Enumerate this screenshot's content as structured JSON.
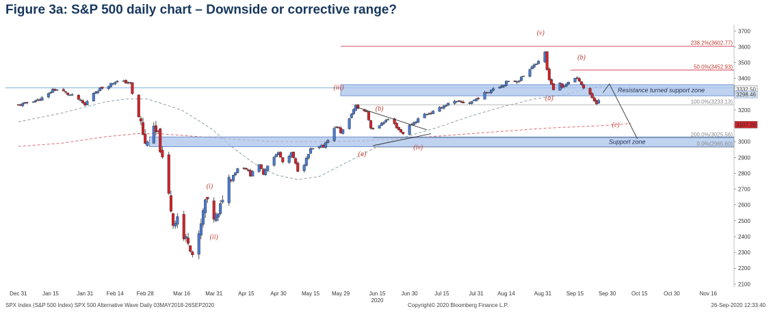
{
  "title": "Figure 3a: S&P 500 daily chart – Downside or corrective range?",
  "footer": {
    "left": "SPX Index (S&P 500 Index) SPX 500 Alternative Wave  Daily 03MAY2018-26SEP2020",
    "center": "Copyright© 2020 Bloomberg Finance L.P.",
    "right": "26-Sep-2020 12:33:40"
  },
  "colors": {
    "up": "#4a7bd0",
    "down": "#d2232a",
    "zone": "#a9c4ec",
    "zone_border": "#5b7fbf",
    "fib_line": "#d64a61",
    "ma_fast": "#8a9ea4",
    "ma_slow": "#e0686d",
    "title": "#17375e"
  },
  "chart_data": {
    "type": "candlestick",
    "title": "Figure 3a: S&P 500 daily chart – Downside or corrective range?",
    "y_axis": {
      "side": "right",
      "ticks": [
        2100,
        2200,
        2300,
        2400,
        2500,
        2600,
        2700,
        2800,
        2900,
        3000,
        3100,
        3200,
        3300,
        3400,
        3500,
        3600,
        3700
      ],
      "range": [
        2080,
        3740
      ]
    },
    "x_axis": {
      "ticks": [
        {
          "label": "Dec 31",
          "d": 0
        },
        {
          "label": "Jan 15",
          "d": 15
        },
        {
          "label": "Jan 31",
          "d": 31
        },
        {
          "label": "Feb 14",
          "d": 45
        },
        {
          "label": "Feb 28",
          "d": 59
        },
        {
          "label": "Mar 16",
          "d": 76
        },
        {
          "label": "Mar 31",
          "d": 91
        },
        {
          "label": "Apr 15",
          "d": 106
        },
        {
          "label": "Apr 30",
          "d": 121
        },
        {
          "label": "May 15",
          "d": 136
        },
        {
          "label": "May 29",
          "d": 150
        },
        {
          "label": "Jun 15",
          "d": 167
        },
        {
          "label": "Jun 30",
          "d": 182
        },
        {
          "label": "Jul 15",
          "d": 197
        },
        {
          "label": "Jul 31",
          "d": 213
        },
        {
          "label": "Aug 14",
          "d": 227
        },
        {
          "label": "Aug 31",
          "d": 244
        },
        {
          "label": "Sep 15",
          "d": 259
        },
        {
          "label": "Sep 30",
          "d": 274
        },
        {
          "label": "Oct 15",
          "d": 289
        },
        {
          "label": "Oct 30",
          "d": 304
        },
        {
          "label": "Nov 16",
          "d": 321
        }
      ],
      "year_label": "2020",
      "domain_days": [
        -6,
        333
      ]
    },
    "close_path": [
      [
        0,
        3230
      ],
      [
        3,
        3240
      ],
      [
        6,
        3258
      ],
      [
        9,
        3262
      ],
      [
        13,
        3285
      ],
      [
        16,
        3330
      ],
      [
        20,
        3325
      ],
      [
        23,
        3300
      ],
      [
        27,
        3280
      ],
      [
        31,
        3230
      ],
      [
        34,
        3300
      ],
      [
        38,
        3335
      ],
      [
        41,
        3350
      ],
      [
        45,
        3380
      ],
      [
        48,
        3380
      ],
      [
        52,
        3370
      ],
      [
        54,
        3230
      ],
      [
        57,
        3120
      ],
      [
        59,
        2980
      ],
      [
        62,
        3090
      ],
      [
        65,
        3040
      ],
      [
        67,
        2880
      ],
      [
        69,
        2750
      ],
      [
        72,
        2480
      ],
      [
        74,
        2530
      ],
      [
        76,
        2390
      ],
      [
        79,
        2380
      ],
      [
        82,
        2240
      ],
      [
        85,
        2475
      ],
      [
        87,
        2630
      ],
      [
        89,
        2590
      ],
      [
        91,
        2520
      ],
      [
        93,
        2530
      ],
      [
        95,
        2650
      ],
      [
        97,
        2760
      ],
      [
        100,
        2790
      ],
      [
        103,
        2850
      ],
      [
        106,
        2830
      ],
      [
        108,
        2790
      ],
      [
        111,
        2870
      ],
      [
        114,
        2800
      ],
      [
        117,
        2880
      ],
      [
        121,
        2930
      ],
      [
        124,
        2840
      ],
      [
        127,
        2930
      ],
      [
        130,
        2820
      ],
      [
        133,
        2860
      ],
      [
        136,
        2950
      ],
      [
        139,
        2960
      ],
      [
        142,
        2970
      ],
      [
        145,
        3040
      ],
      [
        148,
        3100
      ],
      [
        150,
        3060
      ],
      [
        153,
        3100
      ],
      [
        155,
        3180
      ],
      [
        157,
        3225
      ],
      [
        159,
        3200
      ],
      [
        162,
        3190
      ],
      [
        164,
        3090
      ],
      [
        167,
        3070
      ],
      [
        169,
        3120
      ],
      [
        172,
        3140
      ],
      [
        175,
        3110
      ],
      [
        178,
        3060
      ],
      [
        180,
        3050
      ],
      [
        182,
        3100
      ],
      [
        185,
        3130
      ],
      [
        188,
        3170
      ],
      [
        191,
        3180
      ],
      [
        194,
        3190
      ],
      [
        197,
        3220
      ],
      [
        200,
        3240
      ],
      [
        203,
        3250
      ],
      [
        206,
        3250
      ],
      [
        209,
        3240
      ],
      [
        213,
        3270
      ],
      [
        216,
        3295
      ],
      [
        219,
        3320
      ],
      [
        222,
        3350
      ],
      [
        225,
        3355
      ],
      [
        227,
        3375
      ],
      [
        230,
        3380
      ],
      [
        233,
        3390
      ],
      [
        236,
        3430
      ],
      [
        239,
        3480
      ],
      [
        242,
        3500
      ],
      [
        244,
        3580
      ],
      [
        245,
        3560
      ],
      [
        246,
        3455
      ],
      [
        247,
        3400
      ],
      [
        249,
        3330
      ],
      [
        251,
        3390
      ],
      [
        253,
        3340
      ],
      [
        256,
        3380
      ],
      [
        259,
        3400
      ],
      [
        261,
        3390
      ],
      [
        263,
        3340
      ],
      [
        265,
        3320
      ],
      [
        267,
        3280
      ],
      [
        269,
        3240
      ],
      [
        271,
        3290
      ]
    ],
    "moving_averages": [
      {
        "name": "fast",
        "points": [
          [
            0,
            3125
          ],
          [
            20,
            3180
          ],
          [
            40,
            3250
          ],
          [
            50,
            3270
          ],
          [
            60,
            3270
          ],
          [
            76,
            3200
          ],
          [
            90,
            3080
          ],
          [
            100,
            2960
          ],
          [
            110,
            2860
          ],
          [
            120,
            2790
          ],
          [
            130,
            2760
          ],
          [
            140,
            2780
          ],
          [
            150,
            2850
          ],
          [
            160,
            2920
          ],
          [
            170,
            2990
          ],
          [
            180,
            3030
          ],
          [
            195,
            3090
          ],
          [
            210,
            3160
          ],
          [
            225,
            3220
          ],
          [
            240,
            3270
          ],
          [
            255,
            3300
          ],
          [
            266,
            3340
          ],
          [
            272,
            3350
          ]
        ]
      },
      {
        "name": "slow",
        "points": [
          [
            0,
            2970
          ],
          [
            20,
            2990
          ],
          [
            40,
            3030
          ],
          [
            55,
            3050
          ],
          [
            65,
            3050
          ],
          [
            76,
            3040
          ],
          [
            95,
            3020
          ],
          [
            120,
            3000
          ],
          [
            140,
            3000
          ],
          [
            160,
            3005
          ],
          [
            180,
            3020
          ],
          [
            200,
            3040
          ],
          [
            220,
            3060
          ],
          [
            245,
            3085
          ],
          [
            270,
            3100
          ],
          [
            285,
            3115
          ]
        ]
      }
    ],
    "levels": [
      {
        "label": "238.2%(3602.77)",
        "value": 3602.77,
        "d_start": 150,
        "color": "#d64a61"
      },
      {
        "label": "50.0%(3452.93)",
        "value": 3452.93,
        "d_start": 257,
        "color": "#d64a61"
      },
      {
        "label": "100.0%(3233.13)",
        "value": 3233.13,
        "d_start": 155,
        "color": "#b8b8b8"
      },
      {
        "label": "200.0%(3025.56)",
        "value": 3025.56,
        "d_start": 165,
        "color": "#7a8ea6"
      },
      {
        "label": "0.0%(2965.60)",
        "value": 2965.6,
        "d_start": 165,
        "color": "#9aa7b8"
      }
    ],
    "horizontal_line": {
      "value": 3340,
      "color": "#7fb0d8"
    },
    "zones": [
      {
        "label": "Resistance turned support zone",
        "top": 3360,
        "bottom": 3290,
        "d_start": 150,
        "d_end": 333
      },
      {
        "label": "Support zone",
        "top": 3030,
        "bottom": 2968,
        "d_start": 61,
        "d_end": 333
      }
    ],
    "wave_labels": [
      {
        "text": "(v)",
        "d": 243,
        "y": 3676
      },
      {
        "text": "(b)",
        "d": 262,
        "y": 3520
      },
      {
        "text": "(iii)",
        "d": 149,
        "y": 3330
      },
      {
        "text": "(a)",
        "d": 247,
        "y": 3262
      },
      {
        "text": "(b)",
        "d": 168,
        "y": 3195
      },
      {
        "text": "(c)",
        "d": 278,
        "y": 3094
      },
      {
        "text": "(a)",
        "d": 160,
        "y": 2910
      },
      {
        "text": "(iv)",
        "d": 186,
        "y": 2950
      },
      {
        "text": "(i)",
        "d": 89,
        "y": 2705
      },
      {
        "text": "(ii)",
        "d": 91,
        "y": 2385
      }
    ],
    "price_tags": [
      {
        "label": "3332.50",
        "value": 3332.5,
        "bg": "#ffffff",
        "fg": "#000000"
      },
      {
        "label": "3298.46",
        "value": 3298.46,
        "bg": "#d8e4f4",
        "fg": "#000000"
      },
      {
        "label": "3107.20",
        "value": 3107.2,
        "bg": "#d2232a",
        "fg": "#ffffff"
      }
    ],
    "trendlines": [
      {
        "points": [
          [
            157,
            3220
          ],
          [
            190,
            3075
          ]
        ]
      },
      {
        "points": [
          [
            165,
            2975
          ],
          [
            192,
            3050
          ]
        ]
      },
      {
        "points": [
          [
            272,
            3310
          ],
          [
            275,
            3365
          ],
          [
            288,
            3018
          ]
        ]
      }
    ],
    "grid": false
  }
}
